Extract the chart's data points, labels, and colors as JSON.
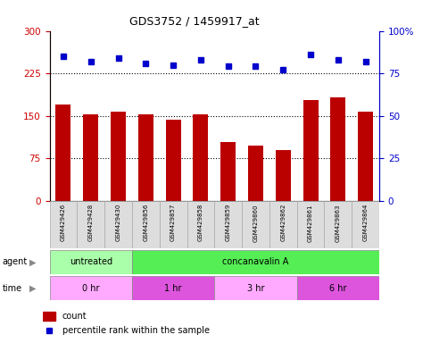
{
  "title": "GDS3752 / 1459917_at",
  "samples": [
    "GSM429426",
    "GSM429428",
    "GSM429430",
    "GSM429856",
    "GSM429857",
    "GSM429858",
    "GSM429859",
    "GSM429860",
    "GSM429862",
    "GSM429861",
    "GSM429863",
    "GSM429864"
  ],
  "counts": [
    170,
    152,
    158,
    153,
    143,
    152,
    103,
    98,
    90,
    178,
    182,
    158
  ],
  "percentile_ranks": [
    85,
    82,
    84,
    81,
    80,
    83,
    79,
    79,
    77,
    86,
    83,
    82
  ],
  "bar_color": "#BB0000",
  "dot_color": "#0000CC",
  "ylim_left": [
    0,
    300
  ],
  "ylim_right": [
    0,
    100
  ],
  "yticks_left": [
    0,
    75,
    150,
    225,
    300
  ],
  "yticks_right": [
    0,
    25,
    50,
    75,
    100
  ],
  "agent_groups": [
    {
      "label": "untreated",
      "start": 0,
      "end": 3,
      "color": "#AAFFAA"
    },
    {
      "label": "concanavalin A",
      "start": 3,
      "end": 12,
      "color": "#55EE55"
    }
  ],
  "time_groups": [
    {
      "label": "0 hr",
      "start": 0,
      "end": 3,
      "color": "#FFAAFF"
    },
    {
      "label": "1 hr",
      "start": 3,
      "end": 6,
      "color": "#DD55DD"
    },
    {
      "label": "3 hr",
      "start": 6,
      "end": 9,
      "color": "#FFAAFF"
    },
    {
      "label": "6 hr",
      "start": 9,
      "end": 12,
      "color": "#DD55DD"
    }
  ],
  "legend_count_color": "#BB0000",
  "legend_dot_color": "#0000CC",
  "bg_color": "#FFFFFF",
  "tick_color_left": "#CC0000",
  "tick_color_right": "#0000CC",
  "dotted_lines": [
    75,
    150,
    225
  ],
  "bar_width": 0.55,
  "tick_label_color": "#888888",
  "sample_box_color": "#DDDDDD"
}
